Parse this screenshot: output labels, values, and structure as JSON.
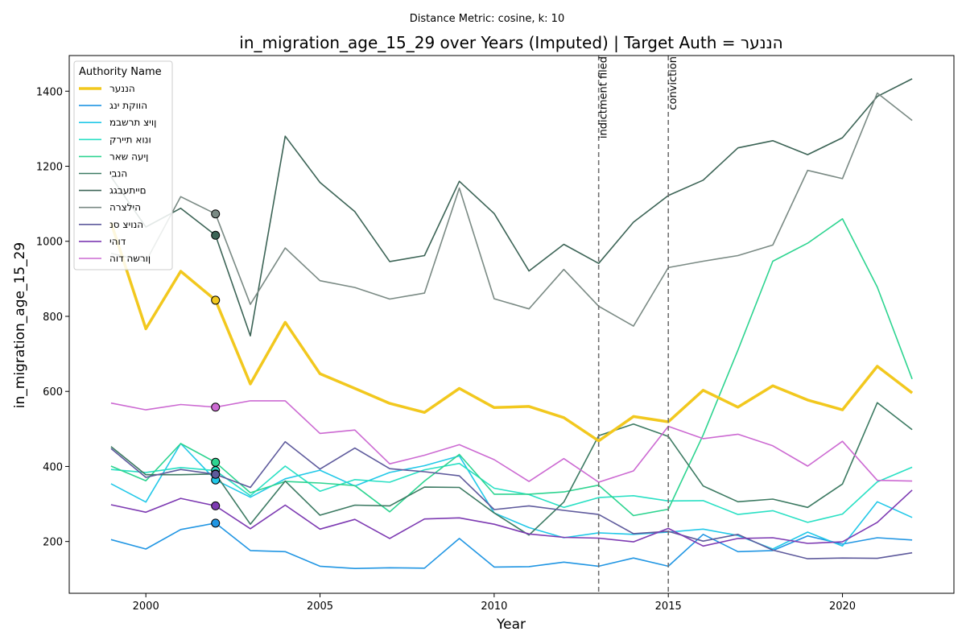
{
  "chart_data": {
    "type": "line",
    "suptitle": "Distance Metric: cosine, k: 10",
    "title": "in_migration_age_15_29 over Years (Imputed) | Target Auth = הננער",
    "xlabel": "Year",
    "ylabel": "in_migration_age_15_29",
    "xlim": [
      1997.8,
      2023.2
    ],
    "ylim": [
      62,
      1495
    ],
    "x_ticks": [
      2000,
      2005,
      2010,
      2015,
      2020
    ],
    "y_ticks": [
      200,
      400,
      600,
      800,
      1000,
      1200,
      1400
    ],
    "grid": false,
    "legend": {
      "title": "Authority Name",
      "position": "top-left"
    },
    "x": [
      1999,
      2000,
      2001,
      2002,
      2003,
      2004,
      2005,
      2006,
      2007,
      2008,
      2009,
      2010,
      2011,
      2012,
      2013,
      2014,
      2015,
      2016,
      2017,
      2018,
      2019,
      2020,
      2021,
      2022
    ],
    "events": [
      {
        "x": 2013,
        "label": "indictment filed"
      },
      {
        "x": 2015,
        "label": "conviction"
      }
    ],
    "marker_year": 2002,
    "series": [
      {
        "name": "הננער",
        "color": "#f2c81e",
        "target": true,
        "values": [
          1050,
          767,
          920,
          843,
          620,
          784,
          647,
          608,
          568,
          544,
          608,
          557,
          560,
          530,
          468,
          533,
          519,
          603,
          558,
          615,
          577,
          551,
          667,
          596
        ]
      },
      {
        "name": "הווקת ינג",
        "color": "#2196e3",
        "values": [
          205,
          180,
          232,
          249,
          176,
          173,
          134,
          128,
          130,
          129,
          208,
          132,
          133,
          145,
          134,
          156,
          134,
          219,
          173,
          176,
          215,
          193,
          210,
          204
        ]
      },
      {
        "name": "ןויצ תרשבמ",
        "color": "#22c8e8",
        "values": [
          354,
          305,
          461,
          364,
          318,
          367,
          390,
          348,
          384,
          402,
          428,
          276,
          237,
          210,
          223,
          219,
          225,
          233,
          216,
          180,
          225,
          188,
          306,
          264
        ]
      },
      {
        "name": "ונוא תיירק",
        "color": "#2ae0c4",
        "values": [
          392,
          384,
          397,
          389,
          322,
          401,
          334,
          365,
          358,
          391,
          408,
          342,
          325,
          291,
          317,
          322,
          308,
          309,
          272,
          282,
          251,
          273,
          359,
          398
        ]
      },
      {
        "name": "ןיעה שאר",
        "color": "#2dd490",
        "values": [
          401,
          362,
          461,
          411,
          330,
          360,
          356,
          349,
          279,
          361,
          432,
          326,
          326,
          332,
          350,
          269,
          286,
          484,
          710,
          947,
          995,
          1060,
          878,
          633
        ]
      },
      {
        "name": "הנבי",
        "color": "#3c7a62",
        "values": [
          453,
          378,
          378,
          380,
          246,
          361,
          270,
          297,
          295,
          345,
          344,
          276,
          217,
          305,
          482,
          513,
          480,
          348,
          306,
          313,
          291,
          353,
          570,
          498
        ]
      },
      {
        "name": "םייתעבגג",
        "color": "#3c6456",
        "values": [
          1172,
          1038,
          1088,
          1016,
          748,
          1280,
          1157,
          1079,
          946,
          962,
          1160,
          1074,
          921,
          992,
          941,
          1051,
          1122,
          1163,
          1249,
          1268,
          1231,
          1276,
          1386,
          1433
        ]
      },
      {
        "name": "הילצרה",
        "color": "#7a8a84",
        "values": [
          968,
          946,
          1119,
          1073,
          832,
          982,
          895,
          877,
          846,
          862,
          1142,
          847,
          820,
          925,
          827,
          774,
          930,
          947,
          962,
          990,
          1189,
          1167,
          1395,
          1322
        ]
      },
      {
        "name": "הנויצ סנ",
        "color": "#5e5a9c",
        "values": [
          448,
          371,
          392,
          379,
          344,
          466,
          393,
          449,
          394,
          386,
          375,
          285,
          295,
          283,
          272,
          221,
          227,
          201,
          219,
          177,
          154,
          156,
          155,
          170
        ]
      },
      {
        "name": "דוהי",
        "color": "#7d3ab2",
        "values": [
          298,
          278,
          315,
          295,
          234,
          297,
          233,
          259,
          208,
          260,
          263,
          246,
          220,
          211,
          209,
          199,
          235,
          188,
          208,
          210,
          195,
          199,
          251,
          337
        ]
      },
      {
        "name": "ןורשה דוה",
        "color": "#cc6ad2",
        "values": [
          569,
          551,
          565,
          558,
          575,
          575,
          488,
          497,
          407,
          430,
          458,
          418,
          360,
          421,
          358,
          388,
          507,
          474,
          486,
          455,
          401,
          467,
          363,
          361
        ]
      }
    ]
  }
}
